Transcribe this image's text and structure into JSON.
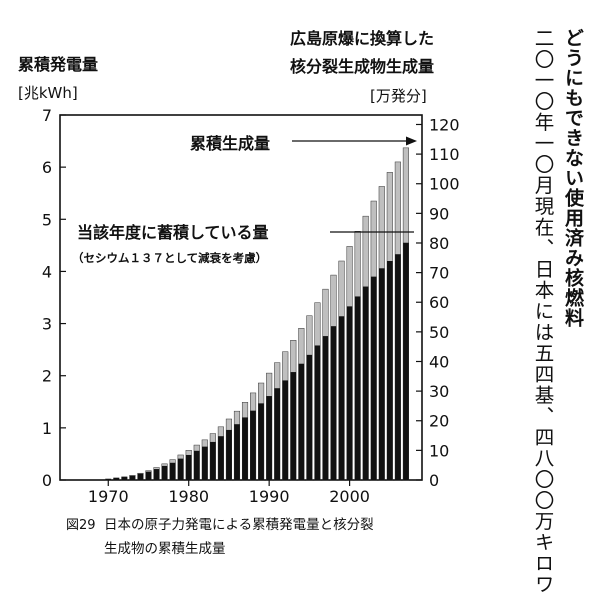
{
  "chart_data": {
    "type": "bar",
    "title": "",
    "left_axis": {
      "title": "累積発電量",
      "unit": "[兆kWh]",
      "ylim": [
        0,
        7
      ],
      "ticks": [
        "0",
        "1",
        "2",
        "3",
        "4",
        "5",
        "6",
        "7"
      ]
    },
    "right_axis": {
      "title_lines": [
        "広島原爆に換算した",
        "核分裂生成物生成量"
      ],
      "unit": "[万発分]",
      "ylim": [
        0,
        123.2
      ],
      "ticks": [
        "0",
        "10",
        "20",
        "30",
        "40",
        "50",
        "60",
        "70",
        "80",
        "90",
        "100",
        "110",
        "120"
      ]
    },
    "x_ticks": [
      "1970",
      "1980",
      "1990",
      "2000"
    ],
    "x": [
      1970,
      1971,
      1972,
      1973,
      1974,
      1975,
      1976,
      1977,
      1978,
      1979,
      1980,
      1981,
      1982,
      1983,
      1984,
      1985,
      1986,
      1987,
      1988,
      1989,
      1990,
      1991,
      1992,
      1993,
      1994,
      1995,
      1996,
      1997,
      1998,
      1999,
      2000,
      2001,
      2002,
      2003,
      2004,
      2005,
      2006,
      2007
    ],
    "series": [
      {
        "name": "累積生成量",
        "values": [
          0.02,
          0.04,
          0.06,
          0.09,
          0.13,
          0.18,
          0.24,
          0.31,
          0.39,
          0.48,
          0.57,
          0.67,
          0.77,
          0.89,
          1.02,
          1.17,
          1.32,
          1.49,
          1.67,
          1.86,
          2.05,
          2.25,
          2.46,
          2.68,
          2.91,
          3.15,
          3.4,
          3.66,
          3.93,
          4.2,
          4.48,
          4.77,
          5.06,
          5.35,
          5.63,
          5.9,
          6.1,
          6.37
        ]
      },
      {
        "name": "当該年度に蓄積している量",
        "values": [
          0.02,
          0.04,
          0.06,
          0.08,
          0.12,
          0.16,
          0.21,
          0.27,
          0.33,
          0.41,
          0.48,
          0.56,
          0.64,
          0.73,
          0.84,
          0.96,
          1.07,
          1.2,
          1.33,
          1.47,
          1.61,
          1.76,
          1.91,
          2.07,
          2.23,
          2.4,
          2.58,
          2.76,
          2.95,
          3.14,
          3.33,
          3.52,
          3.71,
          3.9,
          4.06,
          4.2,
          4.33,
          4.55
        ]
      }
    ],
    "annotations": [
      {
        "text": "累積生成量"
      },
      {
        "text": "当該年度に蓄積している量"
      },
      {
        "text": "（セシウム１３７として減衰を考慮）"
      }
    ]
  },
  "caption": {
    "number": "図29",
    "line1": "日本の原子力発電による累積発電量と核分裂",
    "line2": "生成物の累積生成量"
  },
  "side_text": {
    "heading": "どうにもできない使用済み核燃料",
    "body": "二〇一〇年一〇月現在、日本には五四基、四八〇〇万キロワ"
  },
  "colors": {
    "total_bar": "#bfbfbf",
    "accumulated_bar": "#111111",
    "text": "#111111"
  }
}
